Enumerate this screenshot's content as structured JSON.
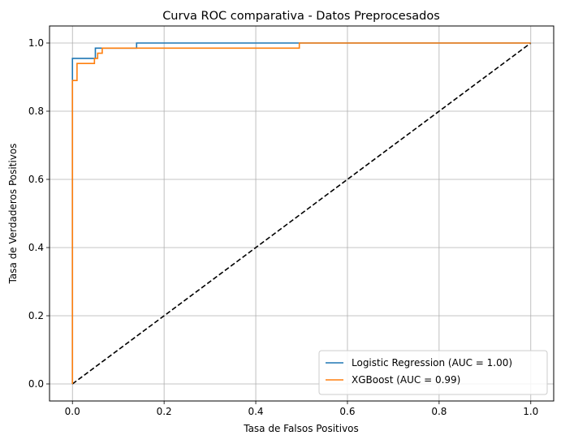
{
  "chart_data": {
    "type": "line",
    "title": "Curva ROC comparativa - Datos Preprocesados",
    "xlabel": "Tasa de Falsos Positivos",
    "ylabel": "Tasa de Verdaderos Positivos",
    "xlim": [
      -0.05,
      1.05
    ],
    "ylim": [
      -0.05,
      1.05
    ],
    "xticks": [
      0.0,
      0.2,
      0.4,
      0.6,
      0.8,
      1.0
    ],
    "yticks": [
      0.0,
      0.2,
      0.4,
      0.6,
      0.8,
      1.0
    ],
    "xtick_labels": [
      "0.0",
      "0.2",
      "0.4",
      "0.6",
      "0.8",
      "1.0"
    ],
    "ytick_labels": [
      "0.0",
      "0.2",
      "0.4",
      "0.6",
      "0.8",
      "1.0"
    ],
    "grid": true,
    "legend_position": "lower-right",
    "series": [
      {
        "name": "Logistic Regression (AUC = 1.00)",
        "color": "#1f77b4",
        "style": "solid",
        "x": [
          0.0,
          0.0,
          0.0,
          0.05,
          0.05,
          0.14,
          0.14,
          1.0
        ],
        "y": [
          0.0,
          0.895,
          0.955,
          0.955,
          0.985,
          0.985,
          1.0,
          1.0
        ]
      },
      {
        "name": "XGBoost (AUC = 0.99)",
        "color": "#ff7f0e",
        "style": "solid",
        "x": [
          0.0,
          0.0,
          0.01,
          0.01,
          0.048,
          0.048,
          0.055,
          0.055,
          0.065,
          0.065,
          0.495,
          0.495,
          1.0
        ],
        "y": [
          0.0,
          0.89,
          0.89,
          0.94,
          0.94,
          0.955,
          0.955,
          0.97,
          0.97,
          0.985,
          0.985,
          1.0,
          1.0
        ]
      },
      {
        "name": "",
        "color": "#000000",
        "style": "dashed",
        "x": [
          0.0,
          1.0
        ],
        "y": [
          0.0,
          1.0
        ]
      }
    ]
  }
}
